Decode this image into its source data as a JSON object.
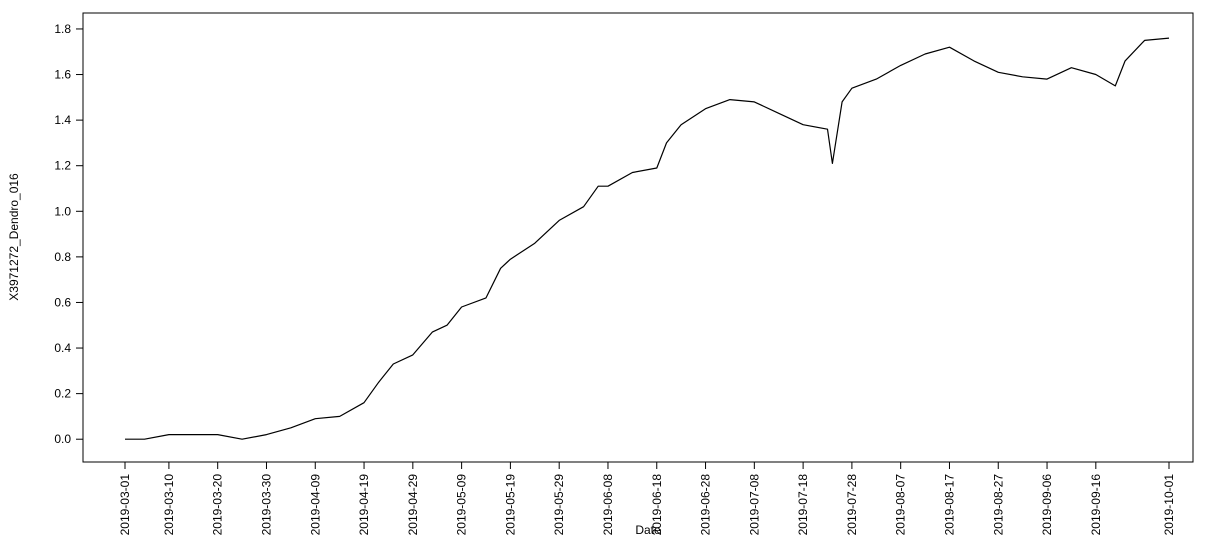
{
  "chart_data": {
    "type": "line",
    "title": "",
    "xlabel": "Date",
    "ylabel": "X3971272_Dendro_016",
    "xlim": [
      "2019-03-01",
      "2019-10-01"
    ],
    "ylim": [
      -0.1,
      1.87
    ],
    "grid": false,
    "legend": "none",
    "x_tick_labels": [
      "2019-03-01",
      "2019-03-10",
      "2019-03-20",
      "2019-03-30",
      "2019-04-09",
      "2019-04-19",
      "2019-04-29",
      "2019-05-09",
      "2019-05-19",
      "2019-05-29",
      "2019-06-08",
      "2019-06-18",
      "2019-06-28",
      "2019-07-08",
      "2019-07-18",
      "2019-07-28",
      "2019-08-07",
      "2019-08-17",
      "2019-08-27",
      "2019-09-06",
      "2019-09-16",
      "2019-10-01"
    ],
    "y_ticks": [
      0.0,
      0.2,
      0.4,
      0.6,
      0.8,
      1.0,
      1.2,
      1.4,
      1.6,
      1.8
    ],
    "y_tick_labels": [
      "0.0",
      "0.2",
      "0.4",
      "0.6",
      "0.8",
      "1.0",
      "1.2",
      "1.4",
      "1.6",
      "1.8"
    ],
    "series": [
      {
        "line_color": "#000000",
        "points": [
          {
            "x": "2019-03-01",
            "y": 0.0
          },
          {
            "x": "2019-03-05",
            "y": 0.0
          },
          {
            "x": "2019-03-10",
            "y": 0.02
          },
          {
            "x": "2019-03-15",
            "y": 0.02
          },
          {
            "x": "2019-03-20",
            "y": 0.02
          },
          {
            "x": "2019-03-25",
            "y": 0.0
          },
          {
            "x": "2019-03-30",
            "y": 0.02
          },
          {
            "x": "2019-04-04",
            "y": 0.05
          },
          {
            "x": "2019-04-09",
            "y": 0.09
          },
          {
            "x": "2019-04-14",
            "y": 0.1
          },
          {
            "x": "2019-04-19",
            "y": 0.16
          },
          {
            "x": "2019-04-22",
            "y": 0.25
          },
          {
            "x": "2019-04-25",
            "y": 0.33
          },
          {
            "x": "2019-04-29",
            "y": 0.37
          },
          {
            "x": "2019-05-03",
            "y": 0.47
          },
          {
            "x": "2019-05-06",
            "y": 0.5
          },
          {
            "x": "2019-05-09",
            "y": 0.58
          },
          {
            "x": "2019-05-14",
            "y": 0.62
          },
          {
            "x": "2019-05-17",
            "y": 0.75
          },
          {
            "x": "2019-05-19",
            "y": 0.79
          },
          {
            "x": "2019-05-24",
            "y": 0.86
          },
          {
            "x": "2019-05-29",
            "y": 0.96
          },
          {
            "x": "2019-06-03",
            "y": 1.02
          },
          {
            "x": "2019-06-06",
            "y": 1.11
          },
          {
            "x": "2019-06-08",
            "y": 1.11
          },
          {
            "x": "2019-06-13",
            "y": 1.17
          },
          {
            "x": "2019-06-18",
            "y": 1.19
          },
          {
            "x": "2019-06-20",
            "y": 1.3
          },
          {
            "x": "2019-06-23",
            "y": 1.38
          },
          {
            "x": "2019-06-28",
            "y": 1.45
          },
          {
            "x": "2019-07-03",
            "y": 1.49
          },
          {
            "x": "2019-07-08",
            "y": 1.48
          },
          {
            "x": "2019-07-13",
            "y": 1.43
          },
          {
            "x": "2019-07-18",
            "y": 1.38
          },
          {
            "x": "2019-07-23",
            "y": 1.36
          },
          {
            "x": "2019-07-24",
            "y": 1.21
          },
          {
            "x": "2019-07-26",
            "y": 1.48
          },
          {
            "x": "2019-07-28",
            "y": 1.54
          },
          {
            "x": "2019-08-02",
            "y": 1.58
          },
          {
            "x": "2019-08-07",
            "y": 1.64
          },
          {
            "x": "2019-08-12",
            "y": 1.69
          },
          {
            "x": "2019-08-17",
            "y": 1.72
          },
          {
            "x": "2019-08-22",
            "y": 1.66
          },
          {
            "x": "2019-08-27",
            "y": 1.61
          },
          {
            "x": "2019-09-01",
            "y": 1.59
          },
          {
            "x": "2019-09-06",
            "y": 1.58
          },
          {
            "x": "2019-09-11",
            "y": 1.63
          },
          {
            "x": "2019-09-16",
            "y": 1.6
          },
          {
            "x": "2019-09-20",
            "y": 1.55
          },
          {
            "x": "2019-09-22",
            "y": 1.66
          },
          {
            "x": "2019-09-26",
            "y": 1.75
          },
          {
            "x": "2019-10-01",
            "y": 1.76
          }
        ]
      }
    ]
  }
}
